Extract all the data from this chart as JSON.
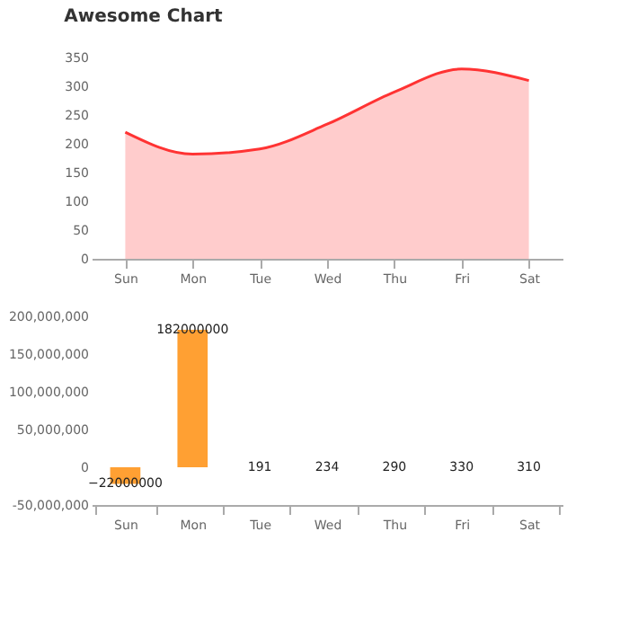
{
  "chart_data": [
    {
      "type": "area",
      "title": "Awesome Chart",
      "categories": [
        "Sun",
        "Mon",
        "Tue",
        "Wed",
        "Thu",
        "Fri",
        "Sat"
      ],
      "series": [
        {
          "color": "#ff3333",
          "values": [
            220,
            182,
            191,
            234,
            290,
            330,
            310
          ]
        }
      ],
      "ylim": [
        0,
        350
      ],
      "yticks": [
        0,
        50,
        100,
        150,
        200,
        250,
        300,
        350
      ]
    },
    {
      "type": "bar",
      "categories": [
        "Sun",
        "Mon",
        "Tue",
        "Wed",
        "Thu",
        "Fri",
        "Sat"
      ],
      "values": [
        -22000000,
        182000000,
        191,
        234,
        290,
        330,
        310
      ],
      "color": "#ffa033",
      "ylim": [
        -50000000,
        200000000
      ],
      "yticks": [
        {
          "value": -50000000,
          "label": "-50,000,000"
        },
        0,
        {
          "value": 50000000,
          "label": "50,000,000"
        },
        {
          "value": 100000000,
          "label": "100,000,000"
        },
        {
          "value": 150000000,
          "label": "150,000,000"
        },
        {
          "value": 200000000,
          "label": "200,000,000"
        }
      ],
      "data_labels": true
    }
  ]
}
